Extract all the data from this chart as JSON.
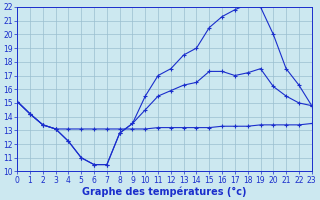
{
  "xlabel": "Graphe des températures (°c)",
  "xlim": [
    0,
    23
  ],
  "ylim": [
    10,
    22
  ],
  "xticks": [
    0,
    1,
    2,
    3,
    4,
    5,
    6,
    7,
    8,
    9,
    10,
    11,
    12,
    13,
    14,
    15,
    16,
    17,
    18,
    19,
    20,
    21,
    22,
    23
  ],
  "yticks": [
    10,
    11,
    12,
    13,
    14,
    15,
    16,
    17,
    18,
    19,
    20,
    21,
    22
  ],
  "background_color": "#cce8f0",
  "grid_color": "#9abfcf",
  "line_color": "#1a2ecc",
  "line1_x": [
    0,
    1,
    2,
    3,
    4,
    5,
    6,
    7,
    8,
    9,
    10,
    11,
    12,
    13,
    14,
    15,
    16,
    17,
    18,
    19,
    20,
    21,
    22,
    23
  ],
  "line1_y": [
    15.1,
    14.2,
    13.4,
    13.1,
    13.1,
    13.1,
    13.1,
    13.1,
    13.1,
    13.1,
    13.1,
    13.2,
    13.2,
    13.2,
    13.2,
    13.2,
    13.3,
    13.3,
    13.3,
    13.4,
    13.4,
    13.4,
    13.4,
    13.5
  ],
  "line2_x": [
    0,
    1,
    2,
    3,
    4,
    5,
    6,
    7,
    8,
    9,
    10,
    11,
    12,
    13,
    14,
    15,
    16,
    17,
    18,
    19,
    20,
    21,
    22,
    23
  ],
  "line2_y": [
    15.1,
    14.2,
    13.4,
    13.1,
    12.2,
    11.0,
    10.5,
    10.5,
    12.8,
    13.5,
    15.5,
    17.0,
    17.5,
    18.5,
    19.0,
    20.5,
    21.3,
    21.8,
    22.2,
    22.0,
    20.0,
    17.5,
    16.3,
    14.8
  ],
  "line3_x": [
    0,
    1,
    2,
    3,
    4,
    5,
    6,
    7,
    8,
    9,
    10,
    11,
    12,
    13,
    14,
    15,
    16,
    17,
    18,
    19,
    20,
    21,
    22,
    23
  ],
  "line3_y": [
    15.1,
    14.2,
    13.4,
    13.1,
    12.2,
    11.0,
    10.5,
    10.5,
    12.8,
    13.5,
    14.5,
    15.5,
    15.9,
    16.3,
    16.5,
    17.3,
    17.3,
    17.0,
    17.2,
    17.5,
    16.2,
    15.5,
    15.0,
    14.8
  ],
  "font_color": "#1a2ecc",
  "tick_fontsize": 5.5,
  "label_fontsize": 7.0
}
